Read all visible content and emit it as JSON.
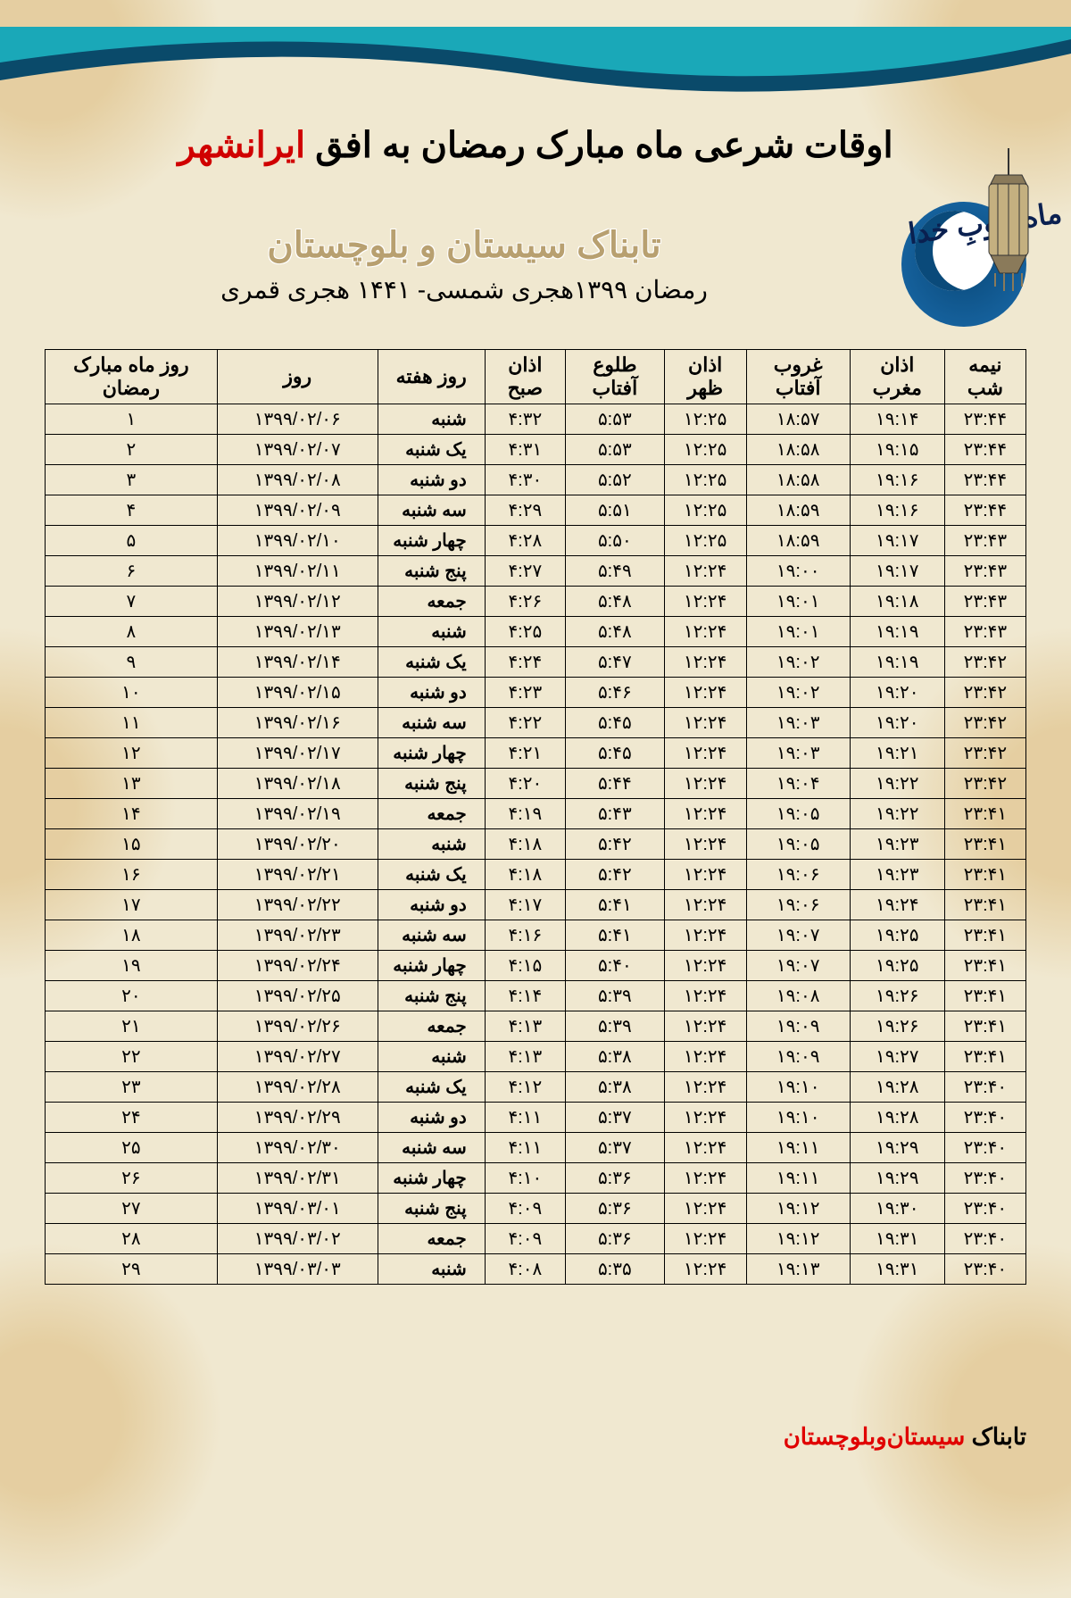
{
  "title_prefix": "اوقات شرعی ماه مبارک رمضان به افق ",
  "title_city": "ایرانشهر",
  "moon_label": "ماه خوبِ خدا",
  "source_name": "تابناک سیستان و بلوچستان",
  "year_line": "رمضان ۱۳۹۹هجری شمسی-  ۱۴۴۱ هجری قمری",
  "colors": {
    "background": "#f0e8d0",
    "ornament": "#d4a85a",
    "teal_dark": "#0a4a6a",
    "teal_light": "#1aa8b8",
    "title_city": "#d00000",
    "source_name": "#b8a070",
    "border": "#000000"
  },
  "columns": [
    {
      "key": "ramadan_day",
      "label": "روز ماه مبارک رمضان"
    },
    {
      "key": "date",
      "label": "روز"
    },
    {
      "key": "weekday",
      "label": "روز هفته"
    },
    {
      "key": "fajr",
      "label": "اذان صبح"
    },
    {
      "key": "sunrise",
      "label": "طلوع آفتاب"
    },
    {
      "key": "dhuhr",
      "label": "اذان ظهر"
    },
    {
      "key": "sunset",
      "label": "غروب آفتاب"
    },
    {
      "key": "maghrib",
      "label": "اذان مغرب"
    },
    {
      "key": "midnight",
      "label": "نیمه شب"
    }
  ],
  "rows": [
    {
      "ramadan_day": "۱",
      "date": "۱۳۹۹/۰۲/۰۶",
      "weekday": "شنبه",
      "fajr": "۴:۳۲",
      "sunrise": "۵:۵۳",
      "dhuhr": "۱۲:۲۵",
      "sunset": "۱۸:۵۷",
      "maghrib": "۱۹:۱۴",
      "midnight": "۲۳:۴۴"
    },
    {
      "ramadan_day": "۲",
      "date": "۱۳۹۹/۰۲/۰۷",
      "weekday": "یک شنبه",
      "fajr": "۴:۳۱",
      "sunrise": "۵:۵۳",
      "dhuhr": "۱۲:۲۵",
      "sunset": "۱۸:۵۸",
      "maghrib": "۱۹:۱۵",
      "midnight": "۲۳:۴۴"
    },
    {
      "ramadan_day": "۳",
      "date": "۱۳۹۹/۰۲/۰۸",
      "weekday": "دو شنبه",
      "fajr": "۴:۳۰",
      "sunrise": "۵:۵۲",
      "dhuhr": "۱۲:۲۵",
      "sunset": "۱۸:۵۸",
      "maghrib": "۱۹:۱۶",
      "midnight": "۲۳:۴۴"
    },
    {
      "ramadan_day": "۴",
      "date": "۱۳۹۹/۰۲/۰۹",
      "weekday": "سه شنبه",
      "fajr": "۴:۲۹",
      "sunrise": "۵:۵۱",
      "dhuhr": "۱۲:۲۵",
      "sunset": "۱۸:۵۹",
      "maghrib": "۱۹:۱۶",
      "midnight": "۲۳:۴۴"
    },
    {
      "ramadan_day": "۵",
      "date": "۱۳۹۹/۰۲/۱۰",
      "weekday": "چهار شنبه",
      "fajr": "۴:۲۸",
      "sunrise": "۵:۵۰",
      "dhuhr": "۱۲:۲۵",
      "sunset": "۱۸:۵۹",
      "maghrib": "۱۹:۱۷",
      "midnight": "۲۳:۴۳"
    },
    {
      "ramadan_day": "۶",
      "date": "۱۳۹۹/۰۲/۱۱",
      "weekday": "پنج شنبه",
      "fajr": "۴:۲۷",
      "sunrise": "۵:۴۹",
      "dhuhr": "۱۲:۲۴",
      "sunset": "۱۹:۰۰",
      "maghrib": "۱۹:۱۷",
      "midnight": "۲۳:۴۳"
    },
    {
      "ramadan_day": "۷",
      "date": "۱۳۹۹/۰۲/۱۲",
      "weekday": "جمعه",
      "fajr": "۴:۲۶",
      "sunrise": "۵:۴۸",
      "dhuhr": "۱۲:۲۴",
      "sunset": "۱۹:۰۱",
      "maghrib": "۱۹:۱۸",
      "midnight": "۲۳:۴۳"
    },
    {
      "ramadan_day": "۸",
      "date": "۱۳۹۹/۰۲/۱۳",
      "weekday": "شنبه",
      "fajr": "۴:۲۵",
      "sunrise": "۵:۴۸",
      "dhuhr": "۱۲:۲۴",
      "sunset": "۱۹:۰۱",
      "maghrib": "۱۹:۱۹",
      "midnight": "۲۳:۴۳"
    },
    {
      "ramadan_day": "۹",
      "date": "۱۳۹۹/۰۲/۱۴",
      "weekday": "یک شنبه",
      "fajr": "۴:۲۴",
      "sunrise": "۵:۴۷",
      "dhuhr": "۱۲:۲۴",
      "sunset": "۱۹:۰۲",
      "maghrib": "۱۹:۱۹",
      "midnight": "۲۳:۴۲"
    },
    {
      "ramadan_day": "۱۰",
      "date": "۱۳۹۹/۰۲/۱۵",
      "weekday": "دو شنبه",
      "fajr": "۴:۲۳",
      "sunrise": "۵:۴۶",
      "dhuhr": "۱۲:۲۴",
      "sunset": "۱۹:۰۲",
      "maghrib": "۱۹:۲۰",
      "midnight": "۲۳:۴۲"
    },
    {
      "ramadan_day": "۱۱",
      "date": "۱۳۹۹/۰۲/۱۶",
      "weekday": "سه شنبه",
      "fajr": "۴:۲۲",
      "sunrise": "۵:۴۵",
      "dhuhr": "۱۲:۲۴",
      "sunset": "۱۹:۰۳",
      "maghrib": "۱۹:۲۰",
      "midnight": "۲۳:۴۲"
    },
    {
      "ramadan_day": "۱۲",
      "date": "۱۳۹۹/۰۲/۱۷",
      "weekday": "چهار شنبه",
      "fajr": "۴:۲۱",
      "sunrise": "۵:۴۵",
      "dhuhr": "۱۲:۲۴",
      "sunset": "۱۹:۰۳",
      "maghrib": "۱۹:۲۱",
      "midnight": "۲۳:۴۲"
    },
    {
      "ramadan_day": "۱۳",
      "date": "۱۳۹۹/۰۲/۱۸",
      "weekday": "پنج شنبه",
      "fajr": "۴:۲۰",
      "sunrise": "۵:۴۴",
      "dhuhr": "۱۲:۲۴",
      "sunset": "۱۹:۰۴",
      "maghrib": "۱۹:۲۲",
      "midnight": "۲۳:۴۲"
    },
    {
      "ramadan_day": "۱۴",
      "date": "۱۳۹۹/۰۲/۱۹",
      "weekday": "جمعه",
      "fajr": "۴:۱۹",
      "sunrise": "۵:۴۳",
      "dhuhr": "۱۲:۲۴",
      "sunset": "۱۹:۰۵",
      "maghrib": "۱۹:۲۲",
      "midnight": "۲۳:۴۱"
    },
    {
      "ramadan_day": "۱۵",
      "date": "۱۳۹۹/۰۲/۲۰",
      "weekday": "شنبه",
      "fajr": "۴:۱۸",
      "sunrise": "۵:۴۲",
      "dhuhr": "۱۲:۲۴",
      "sunset": "۱۹:۰۵",
      "maghrib": "۱۹:۲۳",
      "midnight": "۲۳:۴۱"
    },
    {
      "ramadan_day": "۱۶",
      "date": "۱۳۹۹/۰۲/۲۱",
      "weekday": "یک شنبه",
      "fajr": "۴:۱۸",
      "sunrise": "۵:۴۲",
      "dhuhr": "۱۲:۲۴",
      "sunset": "۱۹:۰۶",
      "maghrib": "۱۹:۲۳",
      "midnight": "۲۳:۴۱"
    },
    {
      "ramadan_day": "۱۷",
      "date": "۱۳۹۹/۰۲/۲۲",
      "weekday": "دو شنبه",
      "fajr": "۴:۱۷",
      "sunrise": "۵:۴۱",
      "dhuhr": "۱۲:۲۴",
      "sunset": "۱۹:۰۶",
      "maghrib": "۱۹:۲۴",
      "midnight": "۲۳:۴۱"
    },
    {
      "ramadan_day": "۱۸",
      "date": "۱۳۹۹/۰۲/۲۳",
      "weekday": "سه شنبه",
      "fajr": "۴:۱۶",
      "sunrise": "۵:۴۱",
      "dhuhr": "۱۲:۲۴",
      "sunset": "۱۹:۰۷",
      "maghrib": "۱۹:۲۵",
      "midnight": "۲۳:۴۱"
    },
    {
      "ramadan_day": "۱۹",
      "date": "۱۳۹۹/۰۲/۲۴",
      "weekday": "چهار شنبه",
      "fajr": "۴:۱۵",
      "sunrise": "۵:۴۰",
      "dhuhr": "۱۲:۲۴",
      "sunset": "۱۹:۰۷",
      "maghrib": "۱۹:۲۵",
      "midnight": "۲۳:۴۱"
    },
    {
      "ramadan_day": "۲۰",
      "date": "۱۳۹۹/۰۲/۲۵",
      "weekday": "پنج شنبه",
      "fajr": "۴:۱۴",
      "sunrise": "۵:۳۹",
      "dhuhr": "۱۲:۲۴",
      "sunset": "۱۹:۰۸",
      "maghrib": "۱۹:۲۶",
      "midnight": "۲۳:۴۱"
    },
    {
      "ramadan_day": "۲۱",
      "date": "۱۳۹۹/۰۲/۲۶",
      "weekday": "جمعه",
      "fajr": "۴:۱۳",
      "sunrise": "۵:۳۹",
      "dhuhr": "۱۲:۲۴",
      "sunset": "۱۹:۰۹",
      "maghrib": "۱۹:۲۶",
      "midnight": "۲۳:۴۱"
    },
    {
      "ramadan_day": "۲۲",
      "date": "۱۳۹۹/۰۲/۲۷",
      "weekday": "شنبه",
      "fajr": "۴:۱۳",
      "sunrise": "۵:۳۸",
      "dhuhr": "۱۲:۲۴",
      "sunset": "۱۹:۰۹",
      "maghrib": "۱۹:۲۷",
      "midnight": "۲۳:۴۱"
    },
    {
      "ramadan_day": "۲۳",
      "date": "۱۳۹۹/۰۲/۲۸",
      "weekday": "یک شنبه",
      "fajr": "۴:۱۲",
      "sunrise": "۵:۳۸",
      "dhuhr": "۱۲:۲۴",
      "sunset": "۱۹:۱۰",
      "maghrib": "۱۹:۲۸",
      "midnight": "۲۳:۴۰"
    },
    {
      "ramadan_day": "۲۴",
      "date": "۱۳۹۹/۰۲/۲۹",
      "weekday": "دو شنبه",
      "fajr": "۴:۱۱",
      "sunrise": "۵:۳۷",
      "dhuhr": "۱۲:۲۴",
      "sunset": "۱۹:۱۰",
      "maghrib": "۱۹:۲۸",
      "midnight": "۲۳:۴۰"
    },
    {
      "ramadan_day": "۲۵",
      "date": "۱۳۹۹/۰۲/۳۰",
      "weekday": "سه شنبه",
      "fajr": "۴:۱۱",
      "sunrise": "۵:۳۷",
      "dhuhr": "۱۲:۲۴",
      "sunset": "۱۹:۱۱",
      "maghrib": "۱۹:۲۹",
      "midnight": "۲۳:۴۰"
    },
    {
      "ramadan_day": "۲۶",
      "date": "۱۳۹۹/۰۲/۳۱",
      "weekday": "چهار شنبه",
      "fajr": "۴:۱۰",
      "sunrise": "۵:۳۶",
      "dhuhr": "۱۲:۲۴",
      "sunset": "۱۹:۱۱",
      "maghrib": "۱۹:۲۹",
      "midnight": "۲۳:۴۰"
    },
    {
      "ramadan_day": "۲۷",
      "date": "۱۳۹۹/۰۳/۰۱",
      "weekday": "پنج شنبه",
      "fajr": "۴:۰۹",
      "sunrise": "۵:۳۶",
      "dhuhr": "۱۲:۲۴",
      "sunset": "۱۹:۱۲",
      "maghrib": "۱۹:۳۰",
      "midnight": "۲۳:۴۰"
    },
    {
      "ramadan_day": "۲۸",
      "date": "۱۳۹۹/۰۳/۰۲",
      "weekday": "جمعه",
      "fajr": "۴:۰۹",
      "sunrise": "۵:۳۶",
      "dhuhr": "۱۲:۲۴",
      "sunset": "۱۹:۱۲",
      "maghrib": "۱۹:۳۱",
      "midnight": "۲۳:۴۰"
    },
    {
      "ramadan_day": "۲۹",
      "date": "۱۳۹۹/۰۳/۰۳",
      "weekday": "شنبه",
      "fajr": "۴:۰۸",
      "sunrise": "۵:۳۵",
      "dhuhr": "۱۲:۲۴",
      "sunset": "۱۹:۱۳",
      "maghrib": "۱۹:۳۱",
      "midnight": "۲۳:۴۰"
    }
  ],
  "footer_brand": "تابناک ",
  "footer_region": "سیستان‌وبلوچستان"
}
